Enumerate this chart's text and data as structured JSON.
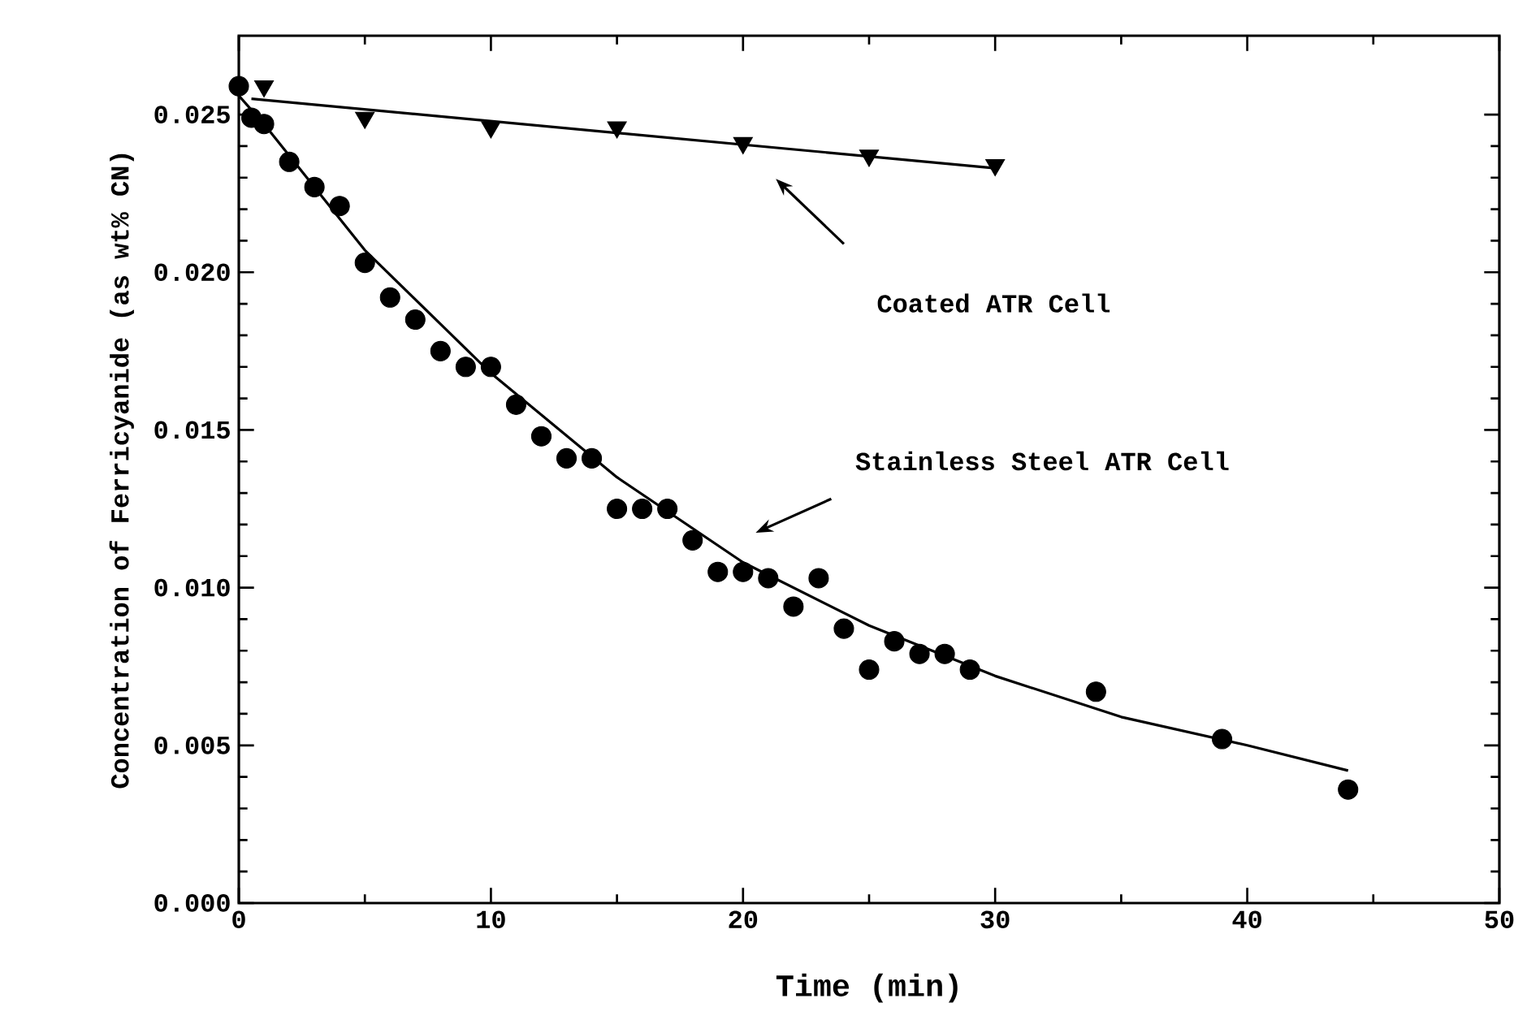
{
  "chart_data": {
    "type": "scatter",
    "xlabel": "Time (min)",
    "ylabel": "Concentration of Ferricyanide (as wt% CN)",
    "xlim": [
      0,
      50
    ],
    "ylim": [
      0,
      0.0275
    ],
    "xticks": [
      0,
      10,
      20,
      30,
      40,
      50
    ],
    "yticks": [
      {
        "value": 0,
        "label": "0.000"
      },
      {
        "value": 0.005,
        "label": "0.005"
      },
      {
        "value": 0.01,
        "label": "0.010"
      },
      {
        "value": 0.015,
        "label": "0.015"
      },
      {
        "value": 0.02,
        "label": "0.020"
      },
      {
        "value": 0.025,
        "label": "0.025"
      }
    ],
    "grid": false,
    "series": [
      {
        "marker": "triangle",
        "color": "#000000",
        "x": [
          1,
          5,
          10,
          15,
          20,
          25,
          30
        ],
        "values": [
          0.0259,
          0.0249,
          0.0246,
          0.0246,
          0.0241,
          0.0237,
          0.0234
        ]
      },
      {
        "type": "line",
        "marker": "none",
        "line_style": "solid",
        "color": "#000000",
        "x": [
          0.5,
          30
        ],
        "values": [
          0.0255,
          0.0233
        ]
      },
      {
        "marker": "circle",
        "color": "#000000",
        "x": [
          0,
          0.5,
          1,
          2,
          3,
          4,
          5,
          6,
          7,
          8,
          9,
          10,
          11,
          12,
          13,
          14,
          15,
          16,
          17,
          18,
          19,
          20,
          21,
          22,
          23,
          24,
          25,
          26,
          27,
          28,
          29,
          34,
          39,
          44
        ],
        "values": [
          0.0259,
          0.0249,
          0.0247,
          0.0235,
          0.0227,
          0.0221,
          0.0203,
          0.0192,
          0.0185,
          0.0175,
          0.017,
          0.017,
          0.0158,
          0.0148,
          0.0141,
          0.0141,
          0.0125,
          0.0125,
          0.0125,
          0.0115,
          0.0105,
          0.0105,
          0.0103,
          0.0094,
          0.0103,
          0.0087,
          0.0074,
          0.0083,
          0.0079,
          0.0079,
          0.0074,
          0.0067,
          0.0052,
          0.0036
        ]
      },
      {
        "type": "line",
        "marker": "none",
        "line_style": "solid",
        "color": "#000000",
        "x": [
          0,
          1,
          5,
          10,
          15,
          20,
          25,
          30,
          35,
          40,
          44
        ],
        "values": [
          0.0256,
          0.0247,
          0.0207,
          0.0168,
          0.0135,
          0.0108,
          0.0088,
          0.0072,
          0.0059,
          0.005,
          0.0042
        ]
      }
    ],
    "annotations": [
      "Coated ATR Cell",
      "Stainless Steel ATR Cell"
    ]
  }
}
